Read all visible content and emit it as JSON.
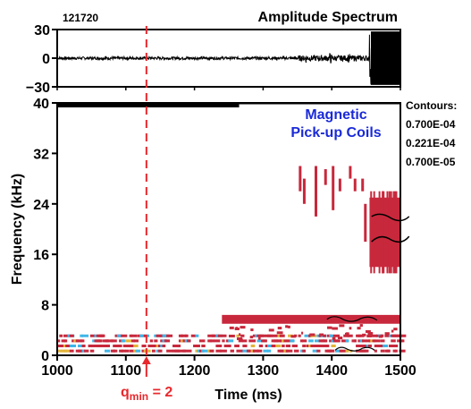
{
  "chart_data": [
    {
      "type": "line",
      "panel": "top",
      "title": "Amplitude Spectrum",
      "shot_label": "121720",
      "xlim": [
        1000,
        1500
      ],
      "ylim": [
        -30,
        30
      ],
      "y_ticks": [
        "30",
        "0",
        "−30"
      ],
      "series": [
        {
          "description_values": "magnetic pick-up coil signal vs time",
          "segments": [
            {
              "x_start": 1000,
              "x_end": 1350,
              "amplitude": 1.5
            },
            {
              "x_start": 1350,
              "x_end": 1455,
              "amplitude": 3
            },
            {
              "x_start": 1455,
              "x_end": 1500,
              "amplitude": 28
            }
          ],
          "bursts": [
            {
              "x": 1362,
              "amplitude": 6
            },
            {
              "x": 1398,
              "amplitude": 7
            },
            {
              "x": 1425,
              "amplitude": 6
            }
          ]
        }
      ]
    },
    {
      "type": "heatmap",
      "panel": "bottom",
      "annotation": [
        "Magnetic",
        "Pick-up Coils"
      ],
      "xlabel": "Time (ms)",
      "ylabel": "Frequency (kHz)",
      "xlim": [
        1000,
        1500
      ],
      "ylim": [
        0,
        40
      ],
      "x_ticks": [
        "1000",
        "1100",
        "1200",
        "1300",
        "1400",
        "1500"
      ],
      "y_ticks": [
        "0",
        "8",
        "16",
        "24",
        "32",
        "40"
      ],
      "contours_title": "Contours:",
      "contour_levels": [
        "0.700E-04",
        "0.221E-04",
        "0.700E-05"
      ],
      "contour_colors": [
        "#000000",
        "#c8283c",
        "#3fb6e8"
      ],
      "marker": {
        "x": 1130,
        "label_base": "q",
        "label_sub": "min",
        "label_rest": " = 2",
        "color": "#e8282c"
      },
      "top_bar": {
        "x_start": 1000,
        "x_end": 1265,
        "y": 40
      },
      "modes": [
        {
          "name": "n1 band",
          "x_start": 1000,
          "x_end": 1500,
          "freq": 1.2
        },
        {
          "name": "5.7 kHz mode",
          "x_start": 1240,
          "x_end": 1500,
          "freq": 5.7
        },
        {
          "name": "20 kHz mode",
          "x_start": 1455,
          "x_end": 1500,
          "freq": 20
        }
      ]
    }
  ]
}
